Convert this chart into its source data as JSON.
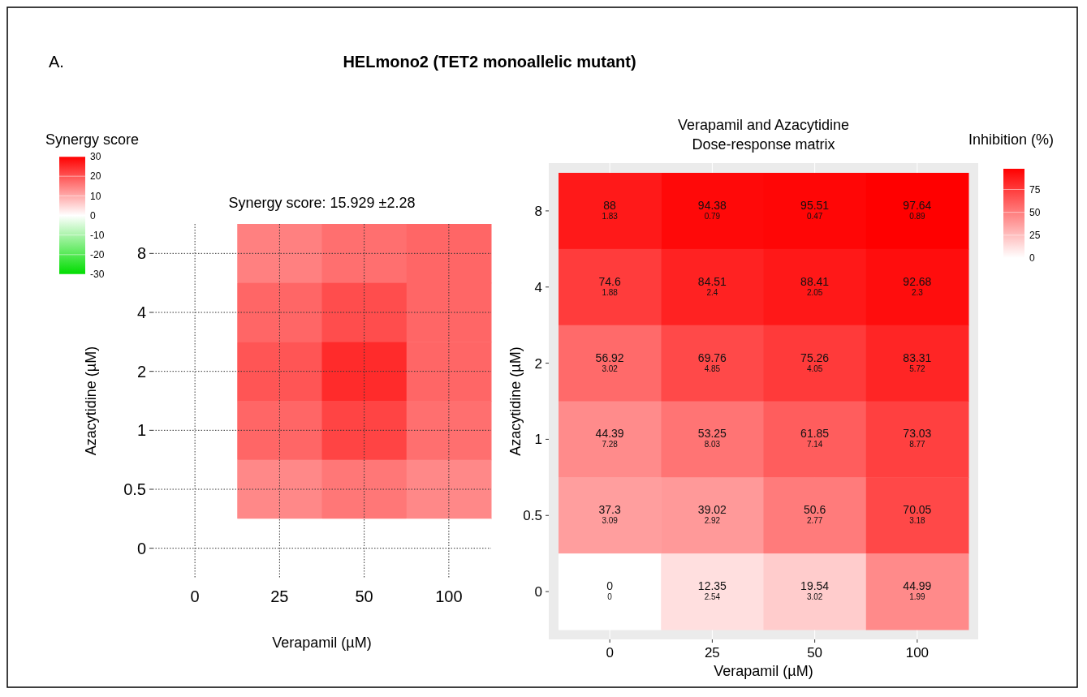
{
  "chart_data": [
    {
      "type": "heatmap",
      "title": "Synergy score: 15.929 ±2.28",
      "xlabel": "Verapamil (µM)",
      "ylabel": "Azacytidine (µM)",
      "clabel": "Synergy score",
      "annotations": [
        "A.",
        "HELmono2 (TET2 monoallelic mutant)"
      ],
      "categories": [
        "0",
        "25",
        "50",
        "100"
      ],
      "y_categories": [
        "8",
        "4",
        "2",
        "1",
        "0.5",
        "0"
      ],
      "cells": [
        [
          0,
          15,
          17,
          18
        ],
        [
          0,
          18,
          21,
          18
        ],
        [
          0,
          20,
          25,
          18
        ],
        [
          0,
          18,
          22,
          17
        ],
        [
          0,
          14,
          16,
          14
        ],
        [
          0,
          0,
          0,
          0
        ]
      ],
      "clim": [
        -30,
        30
      ],
      "cticks": [
        -30,
        -20,
        -10,
        0,
        10,
        20,
        30
      ],
      "grid": true
    },
    {
      "type": "heatmap",
      "title": "Verapamil and Azacytidine",
      "subtitle": "Dose-response matrix",
      "xlabel": "Verapamil (µM)",
      "ylabel": "Azacytidine (µM)",
      "clabel": "Inhibition (%)",
      "categories": [
        "0",
        "25",
        "50",
        "100"
      ],
      "y_categories": [
        "8",
        "4",
        "2",
        "1",
        "0.5",
        "0"
      ],
      "cells": [
        [
          88,
          94.38,
          95.51,
          97.64
        ],
        [
          74.6,
          84.51,
          88.41,
          92.68
        ],
        [
          56.92,
          69.76,
          75.26,
          83.31
        ],
        [
          44.39,
          53.25,
          61.85,
          73.03
        ],
        [
          37.3,
          39.02,
          50.6,
          70.05
        ],
        [
          0,
          12.35,
          19.54,
          44.99
        ]
      ],
      "cell_labels": [
        [
          "88\n1.83",
          "94.38\n0.79",
          "95.51\n0.47",
          "97.64\n0.89"
        ],
        [
          "74.6\n1.88",
          "84.51\n2.4",
          "88.41\n2.05",
          "92.68\n2.3"
        ],
        [
          "56.92\n3.02",
          "69.76\n4.85",
          "75.26\n4.05",
          "83.31\n5.72"
        ],
        [
          "44.39\n7.28",
          "53.25\n8.03",
          "61.85\n7.14",
          "73.03\n8.77"
        ],
        [
          "37.3\n3.09",
          "39.02\n2.92",
          "50.6\n2.77",
          "70.05\n3.18"
        ],
        [
          "0\n0",
          "12.35\n2.54",
          "19.54\n3.02",
          "44.99\n1.99"
        ]
      ],
      "clim": [
        0,
        97.64
      ],
      "cticks": [
        0,
        25,
        50,
        75
      ],
      "grid": true
    }
  ]
}
